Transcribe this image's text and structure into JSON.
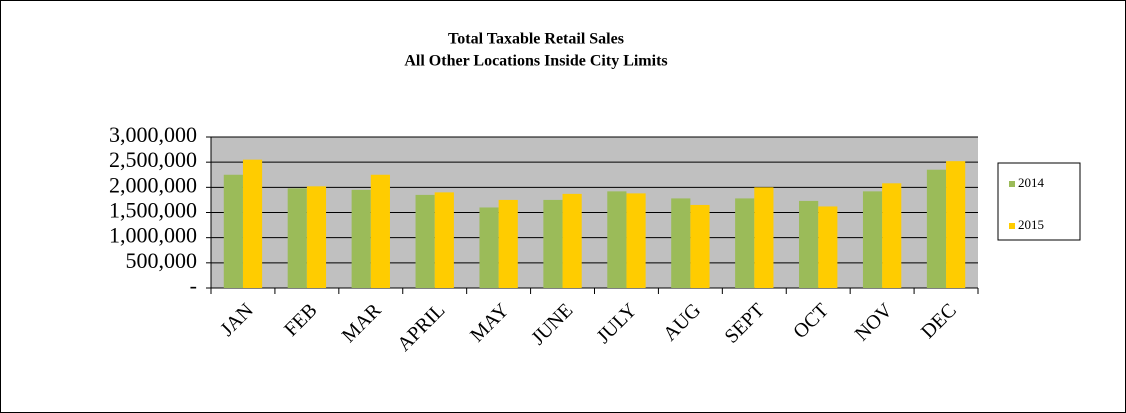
{
  "chart_data": {
    "type": "bar",
    "title": "Total Taxable Retail Sales",
    "subtitle": "All Other Locations Inside City Limits",
    "categories": [
      "JAN",
      "FEB",
      "MAR",
      "APRIL",
      "MAY",
      "JUNE",
      "JULY",
      "AUG",
      "SEPT",
      "OCT",
      "NOV",
      "DEC"
    ],
    "series": [
      {
        "name": "2014",
        "color": "#9bbb59",
        "values": [
          2250000,
          1980000,
          1950000,
          1850000,
          1600000,
          1750000,
          1920000,
          1780000,
          1780000,
          1730000,
          1920000,
          2350000
        ]
      },
      {
        "name": "2015",
        "color": "#ffcc00",
        "values": [
          2550000,
          2020000,
          2250000,
          1900000,
          1750000,
          1870000,
          1880000,
          1650000,
          2000000,
          1620000,
          2080000,
          2520000
        ]
      }
    ],
    "ylim": [
      0,
      3000000
    ],
    "yticks": [
      {
        "value": 0,
        "label": "-"
      },
      {
        "value": 500000,
        "label": "500,000"
      },
      {
        "value": 1000000,
        "label": "1,000,000"
      },
      {
        "value": 1500000,
        "label": "1,500,000"
      },
      {
        "value": 2000000,
        "label": "2,000,000"
      },
      {
        "value": 2500000,
        "label": "2,500,000"
      },
      {
        "value": 3000000,
        "label": "3,000,000"
      }
    ],
    "grid": true,
    "legend": "right"
  }
}
